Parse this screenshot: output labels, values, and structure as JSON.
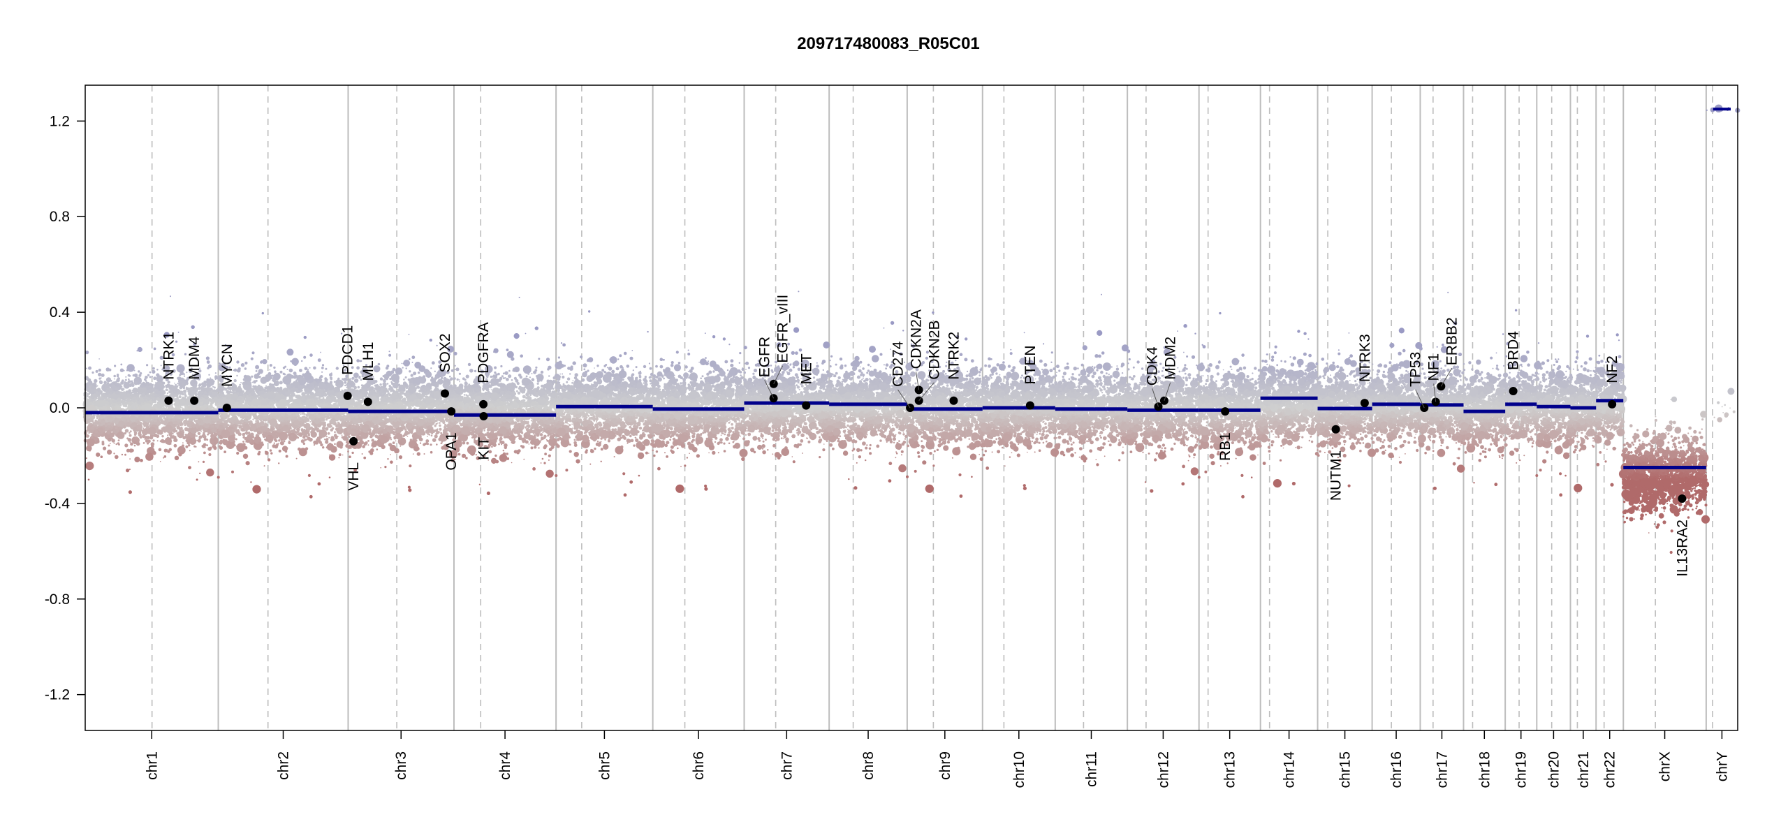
{
  "chart_data": {
    "type": "scatter",
    "title": "209717480083_R05C01",
    "xlabel": "",
    "ylabel": "",
    "ylim": [
      -1.35,
      1.35
    ],
    "y_ticks": [
      "1.2",
      "0.8",
      "0.4",
      "0.0",
      "-0.4",
      "-0.8",
      "-1.2"
    ],
    "y_tick_values": [
      1.2,
      0.8,
      0.4,
      0.0,
      -0.4,
      -0.8,
      -1.2
    ],
    "colors": {
      "segment": "#00008b",
      "gain": "#9a9ac4",
      "neutral": "#cfcfcf",
      "loss": "#b06a6a",
      "gene": "#000000",
      "boundary": "#bdbdbd"
    },
    "chromosomes": [
      {
        "name": "chr1",
        "length_mb": 249,
        "centromere_mb": 125,
        "segment": -0.02
      },
      {
        "name": "chr2",
        "length_mb": 243,
        "centromere_mb": 93,
        "segment": -0.01
      },
      {
        "name": "chr3",
        "length_mb": 198,
        "centromere_mb": 91,
        "segment": -0.015
      },
      {
        "name": "chr4",
        "length_mb": 191,
        "centromere_mb": 50,
        "segment": -0.03
      },
      {
        "name": "chr5",
        "length_mb": 181,
        "centromere_mb": 48,
        "segment": 0.005
      },
      {
        "name": "chr6",
        "length_mb": 171,
        "centromere_mb": 60,
        "segment": -0.005
      },
      {
        "name": "chr7",
        "length_mb": 159,
        "centromere_mb": 59,
        "segment": 0.02
      },
      {
        "name": "chr8",
        "length_mb": 146,
        "centromere_mb": 45,
        "segment": 0.015
      },
      {
        "name": "chr9",
        "length_mb": 141,
        "centromere_mb": 49,
        "segment": -0.005
      },
      {
        "name": "chr10",
        "length_mb": 136,
        "centromere_mb": 40,
        "segment": 0.0
      },
      {
        "name": "chr11",
        "length_mb": 135,
        "centromere_mb": 53,
        "segment": -0.005
      },
      {
        "name": "chr12",
        "length_mb": 134,
        "centromere_mb": 35,
        "segment": -0.01
      },
      {
        "name": "chr13",
        "length_mb": 115,
        "centromere_mb": 17,
        "segment": -0.01
      },
      {
        "name": "chr14",
        "length_mb": 107,
        "centromere_mb": 17,
        "segment": 0.04
      },
      {
        "name": "chr15",
        "length_mb": 102,
        "centromere_mb": 19,
        "segment": -0.003
      },
      {
        "name": "chr16",
        "length_mb": 90,
        "centromere_mb": 36,
        "segment": 0.015
      },
      {
        "name": "chr17",
        "length_mb": 81,
        "centromere_mb": 24,
        "segment": 0.012
      },
      {
        "name": "chr18",
        "length_mb": 78,
        "centromere_mb": 17,
        "segment": -0.015
      },
      {
        "name": "chr19",
        "length_mb": 59,
        "centromere_mb": 26,
        "segment": 0.015
      },
      {
        "name": "chr20",
        "length_mb": 63,
        "centromere_mb": 28,
        "segment": 0.005
      },
      {
        "name": "chr21",
        "length_mb": 48,
        "centromere_mb": 13,
        "segment": 0.0
      },
      {
        "name": "chr22",
        "length_mb": 51,
        "centromere_mb": 15,
        "segment": 0.03
      },
      {
        "name": "chrX",
        "length_mb": 155,
        "centromere_mb": 60,
        "segment": -0.25
      },
      {
        "name": "chrY",
        "length_mb": 59,
        "centromere_mb": 12,
        "segment": 1.25
      }
    ],
    "genes": [
      {
        "name": "NTRK1",
        "chr": "chr1",
        "pos_mb": 156,
        "value": 0.03
      },
      {
        "name": "MDM4",
        "chr": "chr1",
        "pos_mb": 204,
        "value": 0.03
      },
      {
        "name": "MYCN",
        "chr": "chr2",
        "pos_mb": 16,
        "value": 0.0
      },
      {
        "name": "PDCD1",
        "chr": "chr2",
        "pos_mb": 242,
        "value": 0.05
      },
      {
        "name": "VHL",
        "chr": "chr3",
        "pos_mb": 10,
        "value": -0.14
      },
      {
        "name": "MLH1",
        "chr": "chr3",
        "pos_mb": 37,
        "value": 0.025
      },
      {
        "name": "SOX2",
        "chr": "chr3",
        "pos_mb": 181,
        "value": 0.06
      },
      {
        "name": "OPA1",
        "chr": "chr3",
        "pos_mb": 193,
        "value": -0.015
      },
      {
        "name": "PDGFRA",
        "chr": "chr4",
        "pos_mb": 55,
        "value": 0.015
      },
      {
        "name": "KIT",
        "chr": "chr4",
        "pos_mb": 55.5,
        "value": -0.035
      },
      {
        "name": "EGFR",
        "chr": "chr7",
        "pos_mb": 55,
        "value": 0.04
      },
      {
        "name": "EGFR_vIII",
        "chr": "chr7",
        "pos_mb": 55.2,
        "value": 0.1
      },
      {
        "name": "MET",
        "chr": "chr7",
        "pos_mb": 116,
        "value": 0.01
      },
      {
        "name": "CD274",
        "chr": "chr9",
        "pos_mb": 5.5,
        "value": 0.0
      },
      {
        "name": "CDKN2A",
        "chr": "chr9",
        "pos_mb": 21.9,
        "value": 0.075
      },
      {
        "name": "CDKN2B",
        "chr": "chr9",
        "pos_mb": 22.0,
        "value": 0.03
      },
      {
        "name": "NTRK2",
        "chr": "chr9",
        "pos_mb": 87,
        "value": 0.03
      },
      {
        "name": "PTEN",
        "chr": "chr10",
        "pos_mb": 89,
        "value": 0.01
      },
      {
        "name": "CDK4",
        "chr": "chr12",
        "pos_mb": 58,
        "value": 0.005
      },
      {
        "name": "MDM2",
        "chr": "chr12",
        "pos_mb": 69,
        "value": 0.03
      },
      {
        "name": "RB1",
        "chr": "chr13",
        "pos_mb": 49,
        "value": -0.015
      },
      {
        "name": "NUTM1",
        "chr": "chr15",
        "pos_mb": 34,
        "value": -0.09
      },
      {
        "name": "NTRK3",
        "chr": "chr15",
        "pos_mb": 88,
        "value": 0.02
      },
      {
        "name": "TP53",
        "chr": "chr17",
        "pos_mb": 7.5,
        "value": 0.0
      },
      {
        "name": "NF1",
        "chr": "chr17",
        "pos_mb": 29,
        "value": 0.025
      },
      {
        "name": "ERBB2",
        "chr": "chr17",
        "pos_mb": 39,
        "value": 0.09
      },
      {
        "name": "BRD4",
        "chr": "chr19",
        "pos_mb": 15,
        "value": 0.07
      },
      {
        "name": "NF2",
        "chr": "chr22",
        "pos_mb": 30,
        "value": 0.015
      },
      {
        "name": "IL13RA2",
        "chr": "chrX",
        "pos_mb": 110,
        "value": -0.38
      }
    ],
    "probe_noise_sd": 0.07
  }
}
